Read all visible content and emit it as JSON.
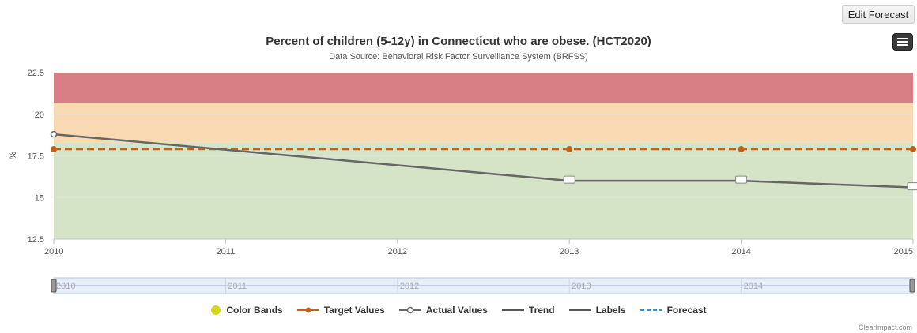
{
  "toolbar": {
    "edit_forecast_label": "Edit Forecast",
    "menu_icon": "hamburger-menu-icon"
  },
  "credit": "ClearImpact.com",
  "colors": {
    "band_red": "#d87f86",
    "band_orange": "#f8d9b2",
    "band_green": "#d5e3c7",
    "target": "#c0631a",
    "actual": "#666666",
    "forecast": "#3a8fd8",
    "color_bands_legend": "#d6d61a"
  },
  "chart_data": {
    "type": "line",
    "title": "Percent of children (5-12y) in Connecticut who are obese. (HCT2020)",
    "subtitle": "Data Source: Behavioral Risk Factor Surveillance System (BRFSS)",
    "xlabel": "",
    "ylabel": "%",
    "x": [
      2010,
      2011,
      2012,
      2013,
      2014,
      2015
    ],
    "x_tick_labels": [
      "2010",
      "2011",
      "2012",
      "2013",
      "2014",
      "2015"
    ],
    "y_ticks": [
      12.5,
      15,
      17.5,
      20,
      22.5
    ],
    "y_tick_labels": [
      "12.5",
      "15",
      "17.5",
      "20",
      "22.5"
    ],
    "ylim": [
      12.5,
      22.5
    ],
    "grid": true,
    "color_bands": [
      {
        "from": 12.5,
        "to": 18.3,
        "color": "green"
      },
      {
        "from": 18.3,
        "to": 20.7,
        "color": "orange"
      },
      {
        "from": 20.7,
        "to": 22.5,
        "color": "red"
      }
    ],
    "series": [
      {
        "name": "Target Values",
        "style": "dashed",
        "x": [
          2010,
          2013,
          2014,
          2015
        ],
        "values": [
          17.9,
          17.9,
          17.9,
          17.9
        ]
      },
      {
        "name": "Actual Values",
        "style": "solid",
        "x": [
          2010,
          2013,
          2014,
          2015
        ],
        "values": [
          18.8,
          16.0,
          16.0,
          15.6
        ]
      }
    ],
    "navigator": {
      "tick_labels": [
        "2010",
        "2011",
        "2012",
        "2013",
        "2014"
      ]
    },
    "legend": {
      "position": "bottom",
      "items": [
        "Color Bands",
        "Target Values",
        "Actual Values",
        "Trend",
        "Labels",
        "Forecast"
      ]
    }
  }
}
